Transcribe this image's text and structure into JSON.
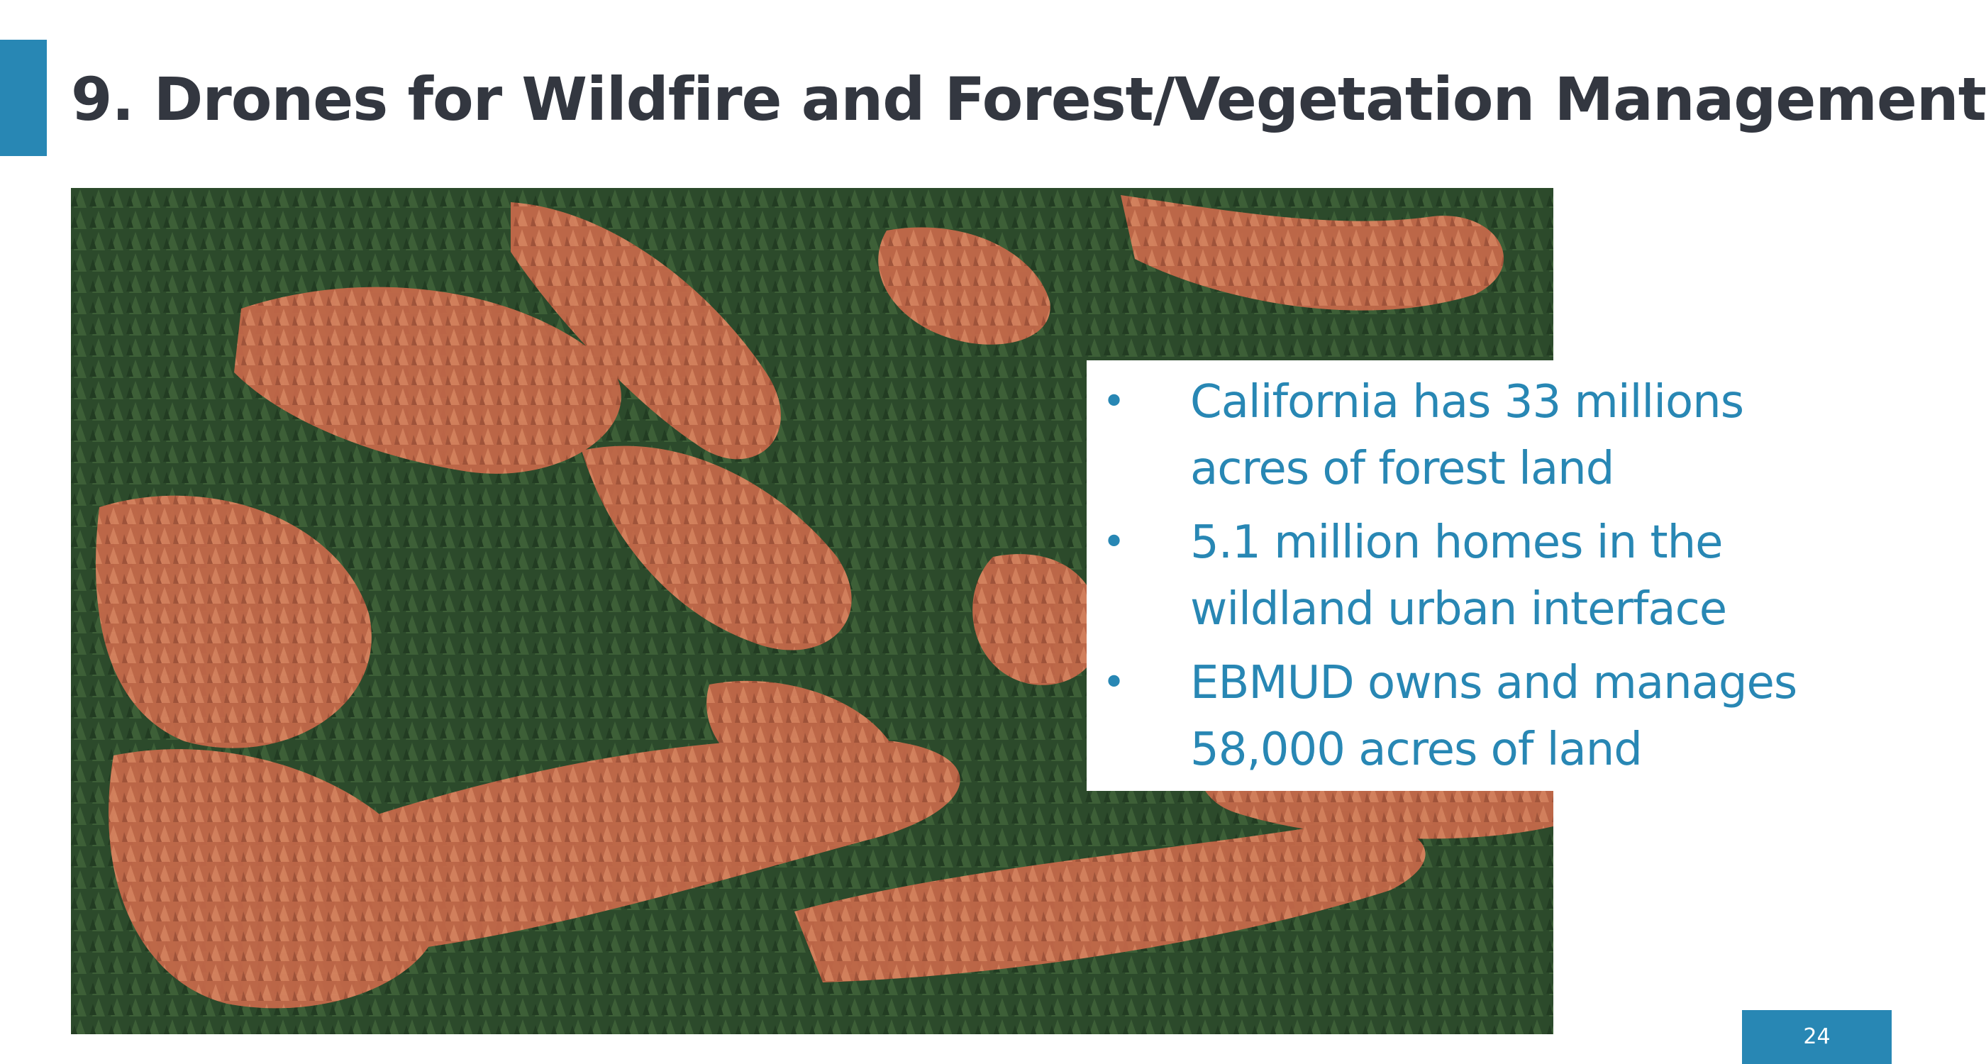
{
  "slide": {
    "title": "9. Drones for Wildfire and Forest/Vegetation Management",
    "accent_color": "#2887b4",
    "title_color": "#333740",
    "bullets": [
      {
        "lines": [
          "California has 33 millions",
          "acres of forest land"
        ]
      },
      {
        "lines": [
          "5.1 million homes in the",
          "wildland urban interface"
        ]
      },
      {
        "lines": [
          "EBMUD owns and manages",
          "58,000 acres of land"
        ]
      }
    ],
    "bullet_glyph": "•",
    "page_number": "24",
    "photo_icon": "forest-photo-icon"
  }
}
